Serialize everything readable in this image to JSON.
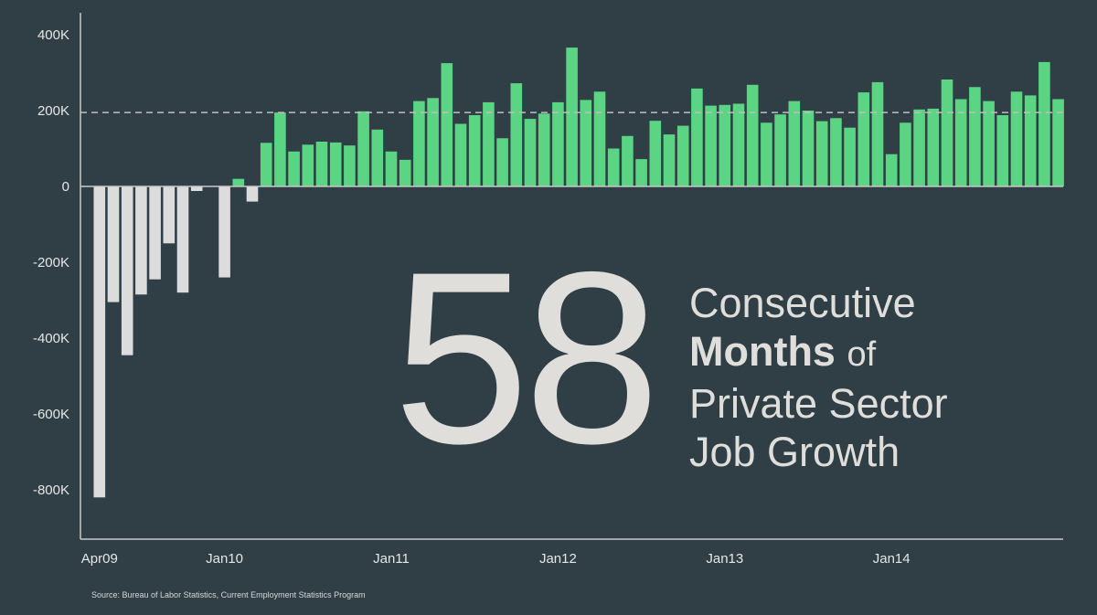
{
  "chart_data": {
    "type": "bar",
    "ylim": [
      -900000,
      420000
    ],
    "yticks": [
      {
        "value": 400000,
        "label": "400K"
      },
      {
        "value": 200000,
        "label": "200K"
      },
      {
        "value": 0,
        "label": "0"
      },
      {
        "value": -200000,
        "label": "-200K"
      },
      {
        "value": -400000,
        "label": "-400K"
      },
      {
        "value": -600000,
        "label": "-600K"
      },
      {
        "value": -800000,
        "label": "-800K"
      }
    ],
    "xticks": [
      {
        "index": 0,
        "label": "Apr09"
      },
      {
        "index": 9,
        "label": "Jan10"
      },
      {
        "index": 21,
        "label": "Jan11"
      },
      {
        "index": 33,
        "label": "Jan12"
      },
      {
        "index": 45,
        "label": "Jan13"
      },
      {
        "index": 57,
        "label": "Jan14"
      }
    ],
    "reference_line": 195000,
    "colors": {
      "negative": "#dcdcdc",
      "positive": "#5bd584",
      "axis": "#c8c8c8",
      "reference": "#bfbfbf"
    },
    "values": [
      -820000,
      -305000,
      -445000,
      -285000,
      -245000,
      -150000,
      -280000,
      -12000,
      0,
      -240000,
      20000,
      -40000,
      115000,
      195000,
      92000,
      110000,
      118000,
      116000,
      108000,
      198000,
      150000,
      92000,
      70000,
      225000,
      233000,
      325000,
      165000,
      188000,
      222000,
      127000,
      272000,
      178000,
      192000,
      222000,
      366000,
      228000,
      250000,
      100000,
      133000,
      72000,
      173000,
      137000,
      160000,
      258000,
      213000,
      215000,
      218000,
      268000,
      168000,
      190000,
      225000,
      200000,
      172000,
      180000,
      155000,
      248000,
      275000,
      85000,
      168000,
      203000,
      205000,
      282000,
      230000,
      262000,
      225000,
      188000,
      250000,
      240000,
      328000,
      230000
    ]
  },
  "headline": {
    "number": "58",
    "line1": "Consecutive",
    "line2_bold": "Months",
    "line2_rest": "of",
    "line3": "Private Sector",
    "line4": "Job Growth"
  },
  "source": "Source: Bureau of Labor Statistics, Current Employment Statistics Program"
}
